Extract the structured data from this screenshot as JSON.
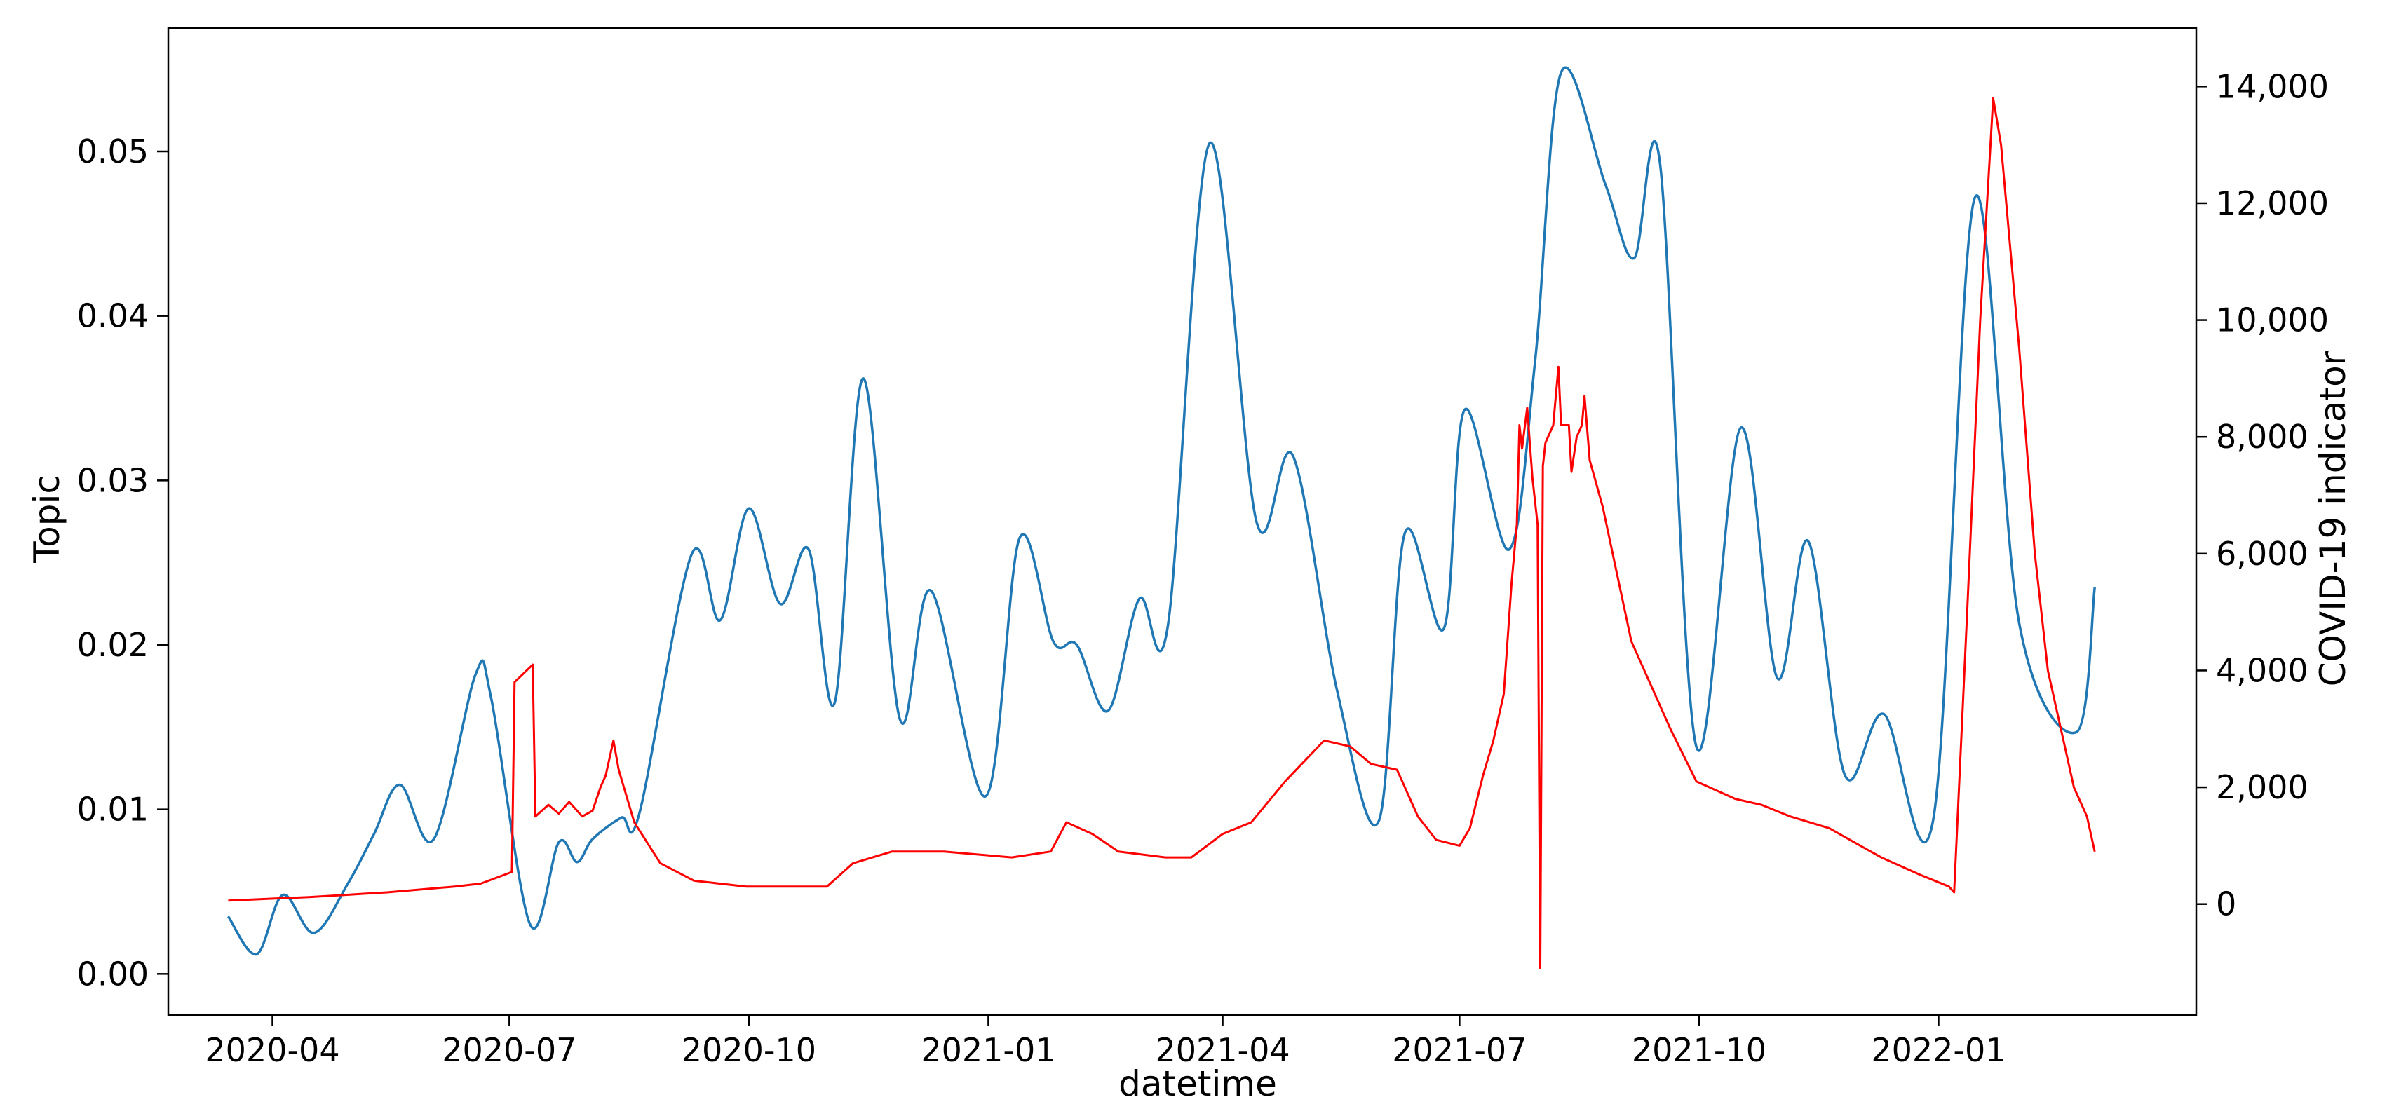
{
  "chart_data": {
    "type": "line",
    "title": "",
    "xlabel": "datetime",
    "ylabel_left": "Topic",
    "ylabel_right": "COVID-19 indicator",
    "xlim": [
      "2020-02-21",
      "2022-04-10"
    ],
    "ylim_left": [
      -0.0025,
      0.0575
    ],
    "ylim_right": [
      -1900,
      15000
    ],
    "x_ticks": [
      "2020-04",
      "2020-07",
      "2020-10",
      "2021-01",
      "2021-04",
      "2021-07",
      "2021-10",
      "2022-01"
    ],
    "y_ticks_left": [
      "0.00",
      "0.01",
      "0.02",
      "0.03",
      "0.04",
      "0.05"
    ],
    "y_ticks_right": [
      "0",
      "2,000",
      "4,000",
      "6,000",
      "8,000",
      "10,000",
      "12,000",
      "14,000"
    ],
    "grid": false,
    "legend": "none",
    "series": [
      {
        "axis": "left",
        "color": "#1f77b4",
        "x": [
          "2020-03-15",
          "2020-03-26",
          "2020-04-05",
          "2020-04-17",
          "2020-04-30",
          "2020-05-10",
          "2020-05-20",
          "2020-06-02",
          "2020-06-18",
          "2020-06-24",
          "2020-07-09",
          "2020-07-20",
          "2020-07-27",
          "2020-08-02",
          "2020-08-13",
          "2020-08-20",
          "2020-09-09",
          "2020-09-20",
          "2020-10-01",
          "2020-10-13",
          "2020-10-24",
          "2020-11-03",
          "2020-11-14",
          "2020-11-28",
          "2020-12-10",
          "2020-12-31",
          "2021-01-13",
          "2021-01-26",
          "2021-02-04",
          "2021-02-16",
          "2021-02-28",
          "2021-03-11",
          "2021-03-27",
          "2021-04-14",
          "2021-04-28",
          "2021-05-15",
          "2021-05-31",
          "2021-06-10",
          "2021-06-25",
          "2021-07-03",
          "2021-07-20",
          "2021-07-30",
          "2021-08-09",
          "2021-08-26",
          "2021-09-06",
          "2021-09-16",
          "2021-09-30",
          "2021-10-17",
          "2021-10-31",
          "2021-11-12",
          "2021-11-26",
          "2021-12-11",
          "2021-12-30",
          "2022-01-15",
          "2022-02-01",
          "2022-02-23",
          "2022-03-02"
        ],
        "y": [
          0.0035,
          0.0012,
          0.0048,
          0.0025,
          0.0055,
          0.0085,
          0.0115,
          0.0082,
          0.0182,
          0.0168,
          0.003,
          0.008,
          0.0068,
          0.0082,
          0.0095,
          0.0098,
          0.0255,
          0.0215,
          0.0283,
          0.0225,
          0.0258,
          0.0165,
          0.0362,
          0.0155,
          0.0233,
          0.0108,
          0.0265,
          0.0202,
          0.02,
          0.016,
          0.0228,
          0.0212,
          0.0505,
          0.0275,
          0.0315,
          0.0172,
          0.0093,
          0.0268,
          0.021,
          0.0343,
          0.0258,
          0.0372,
          0.0548,
          0.048,
          0.0435,
          0.0493,
          0.0138,
          0.0332,
          0.018,
          0.0263,
          0.0121,
          0.0158,
          0.0094,
          0.0472,
          0.0213,
          0.0147,
          0.0235
        ]
      },
      {
        "axis": "right",
        "color": "#ff0000",
        "x": [
          "2020-03-15",
          "2020-04-15",
          "2020-05-15",
          "2020-06-10",
          "2020-06-20",
          "2020-07-02",
          "2020-07-03",
          "2020-07-10",
          "2020-07-11",
          "2020-07-16",
          "2020-07-20",
          "2020-07-24",
          "2020-07-29",
          "2020-08-02",
          "2020-08-05",
          "2020-08-07",
          "2020-08-10",
          "2020-08-12",
          "2020-08-18",
          "2020-08-28",
          "2020-09-10",
          "2020-09-30",
          "2020-10-20",
          "2020-10-31",
          "2020-11-10",
          "2020-11-25",
          "2020-12-15",
          "2021-01-10",
          "2021-01-25",
          "2021-01-31",
          "2021-02-10",
          "2021-02-20",
          "2021-03-10",
          "2021-03-20",
          "2021-04-01",
          "2021-04-12",
          "2021-04-25",
          "2021-05-10",
          "2021-05-20",
          "2021-05-28",
          "2021-06-07",
          "2021-06-15",
          "2021-06-22",
          "2021-07-01",
          "2021-07-05",
          "2021-07-10",
          "2021-07-14",
          "2021-07-18",
          "2021-07-21",
          "2021-07-23",
          "2021-07-24",
          "2021-07-25",
          "2021-07-27",
          "2021-07-29",
          "2021-07-31",
          "2021-08-01",
          "2021-08-02",
          "2021-08-03",
          "2021-08-06",
          "2021-08-08",
          "2021-08-09",
          "2021-08-12",
          "2021-08-13",
          "2021-08-15",
          "2021-08-17",
          "2021-08-18",
          "2021-08-20",
          "2021-08-25",
          "2021-09-05",
          "2021-09-20",
          "2021-09-30",
          "2021-10-15",
          "2021-10-25",
          "2021-11-05",
          "2021-11-20",
          "2021-12-10",
          "2021-12-25",
          "2022-01-05",
          "2022-01-07",
          "2022-01-12",
          "2022-01-17",
          "2022-01-22",
          "2022-01-25",
          "2022-02-01",
          "2022-02-07",
          "2022-02-12",
          "2022-02-16",
          "2022-02-22",
          "2022-02-27",
          "2022-03-02"
        ],
        "y": [
          60,
          120,
          200,
          300,
          350,
          550,
          3800,
          4100,
          1500,
          1700,
          1550,
          1750,
          1500,
          1600,
          2000,
          2200,
          2800,
          2300,
          1400,
          700,
          400,
          300,
          300,
          300,
          700,
          900,
          900,
          800,
          900,
          1400,
          1200,
          900,
          800,
          800,
          1200,
          1400,
          2100,
          2800,
          2700,
          2400,
          2300,
          1500,
          1100,
          1000,
          1300,
          2200,
          2800,
          3600,
          5500,
          6500,
          8200,
          7800,
          8500,
          7300,
          6500,
          -1100,
          7500,
          7900,
          8200,
          9200,
          8200,
          8200,
          7400,
          8000,
          8200,
          8700,
          7600,
          6800,
          4500,
          3000,
          2100,
          1800,
          1700,
          1500,
          1300,
          800,
          500,
          300,
          200,
          5000,
          10000,
          13800,
          13000,
          9500,
          6000,
          4000,
          3200,
          2000,
          1500,
          900
        ]
      }
    ]
  }
}
